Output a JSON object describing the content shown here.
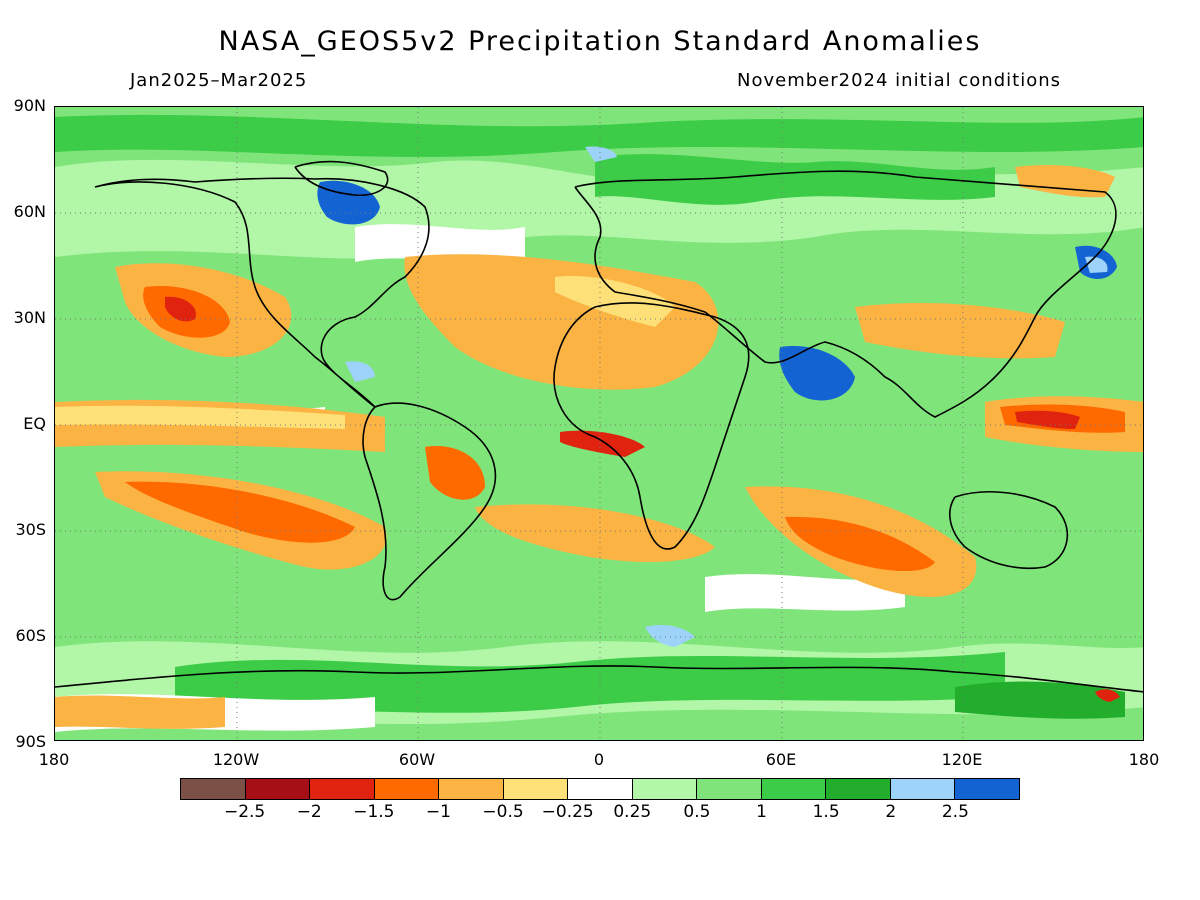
{
  "title": "NASA_GEOS5v2 Precipitation Standard Anomalies",
  "subtitle_left": "Jan2025–Mar2025",
  "subtitle_right": "November2024 initial conditions",
  "lat_labels": [
    "90N",
    "60N",
    "30N",
    "EQ",
    "30S",
    "60S",
    "90S"
  ],
  "lon_labels": [
    "180",
    "120W",
    "60W",
    "0",
    "60E",
    "120E",
    "180"
  ],
  "colorbar": {
    "colors": [
      "#7b5147",
      "#a50f15",
      "#e0230e",
      "#ff6a00",
      "#fbb444",
      "#fde178",
      "#ffffff",
      "#b2f6a8",
      "#7fe57a",
      "#3ccc47",
      "#22ae2c",
      "#9dd2f9",
      "#1463d2"
    ],
    "labels": [
      "−2.5",
      "−2",
      "−1.5",
      "−1",
      "−0.5",
      "−0.25",
      "0.25",
      "0.5",
      "1",
      "1.5",
      "2",
      "2.5"
    ]
  }
}
